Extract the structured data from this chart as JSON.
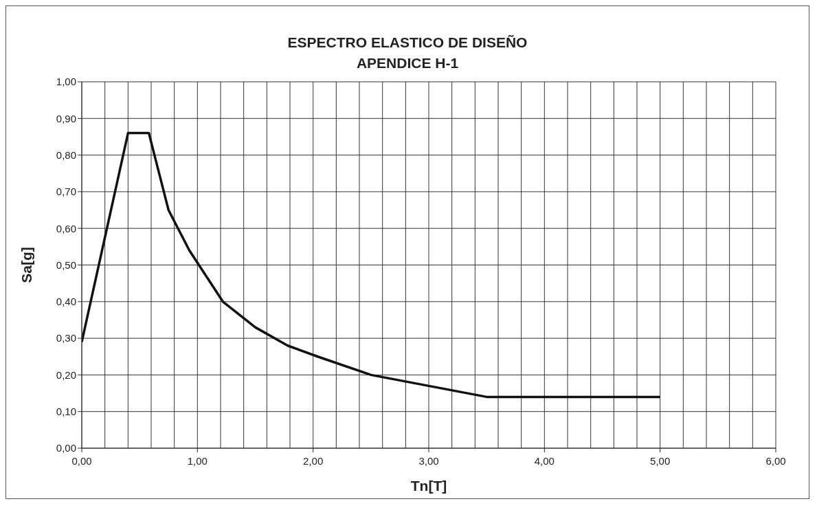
{
  "chart_data": {
    "type": "line",
    "title": "ESPECTRO ELASTICO DE DISEÑO",
    "subtitle": "APENDICE H-1",
    "xlabel": "Tn[T]",
    "ylabel": "Sa[g]",
    "x": [
      0,
      0.4,
      0.58,
      0.75,
      0.93,
      1.22,
      1.5,
      1.78,
      2.04,
      2.5,
      3.0,
      3.5,
      5.0
    ],
    "series": [
      {
        "color": "#111111",
        "values": [
          0.29,
          0.86,
          0.86,
          0.65,
          0.54,
          0.4,
          0.33,
          0.28,
          0.25,
          0.2,
          0.17,
          0.14,
          0.14
        ]
      }
    ],
    "xlim": [
      0,
      6
    ],
    "xticks": [
      {
        "value": 0,
        "label": "0,00"
      },
      {
        "value": 0.2,
        "label": null
      },
      {
        "value": 0.4,
        "label": null
      },
      {
        "value": 0.6,
        "label": null
      },
      {
        "value": 0.8,
        "label": null
      },
      {
        "value": 1,
        "label": "1,00"
      },
      {
        "value": 1.2,
        "label": null
      },
      {
        "value": 1.4,
        "label": null
      },
      {
        "value": 1.6,
        "label": null
      },
      {
        "value": 1.8,
        "label": null
      },
      {
        "value": 2,
        "label": "2,00"
      },
      {
        "value": 2.2,
        "label": null
      },
      {
        "value": 2.4,
        "label": null
      },
      {
        "value": 2.6,
        "label": null
      },
      {
        "value": 2.8,
        "label": null
      },
      {
        "value": 3,
        "label": "3,00"
      },
      {
        "value": 3.2,
        "label": null
      },
      {
        "value": 3.4,
        "label": null
      },
      {
        "value": 3.6,
        "label": null
      },
      {
        "value": 3.8,
        "label": null
      },
      {
        "value": 4,
        "label": "4,00"
      },
      {
        "value": 4.2,
        "label": null
      },
      {
        "value": 4.4,
        "label": null
      },
      {
        "value": 4.6,
        "label": null
      },
      {
        "value": 4.8,
        "label": null
      },
      {
        "value": 5,
        "label": "5,00"
      },
      {
        "value": 5.2,
        "label": null
      },
      {
        "value": 5.4,
        "label": null
      },
      {
        "value": 5.6,
        "label": null
      },
      {
        "value": 5.8,
        "label": null
      },
      {
        "value": 6,
        "label": "6,00"
      }
    ],
    "ylim": [
      0,
      1
    ],
    "yticks": [
      {
        "value": 0,
        "label": "0,00"
      },
      {
        "value": 0.1,
        "label": "0,10"
      },
      {
        "value": 0.2,
        "label": "0,20"
      },
      {
        "value": 0.3,
        "label": "0,30"
      },
      {
        "value": 0.4,
        "label": "0,40"
      },
      {
        "value": 0.5,
        "label": "0,50"
      },
      {
        "value": 0.6,
        "label": "0,60"
      },
      {
        "value": 0.7,
        "label": "0,70"
      },
      {
        "value": 0.8,
        "label": "0,80"
      },
      {
        "value": 0.9,
        "label": "0,90"
      },
      {
        "value": 1,
        "label": "1,00"
      }
    ],
    "grid": true,
    "legend": false,
    "marker": "none",
    "line_style": "solid"
  }
}
